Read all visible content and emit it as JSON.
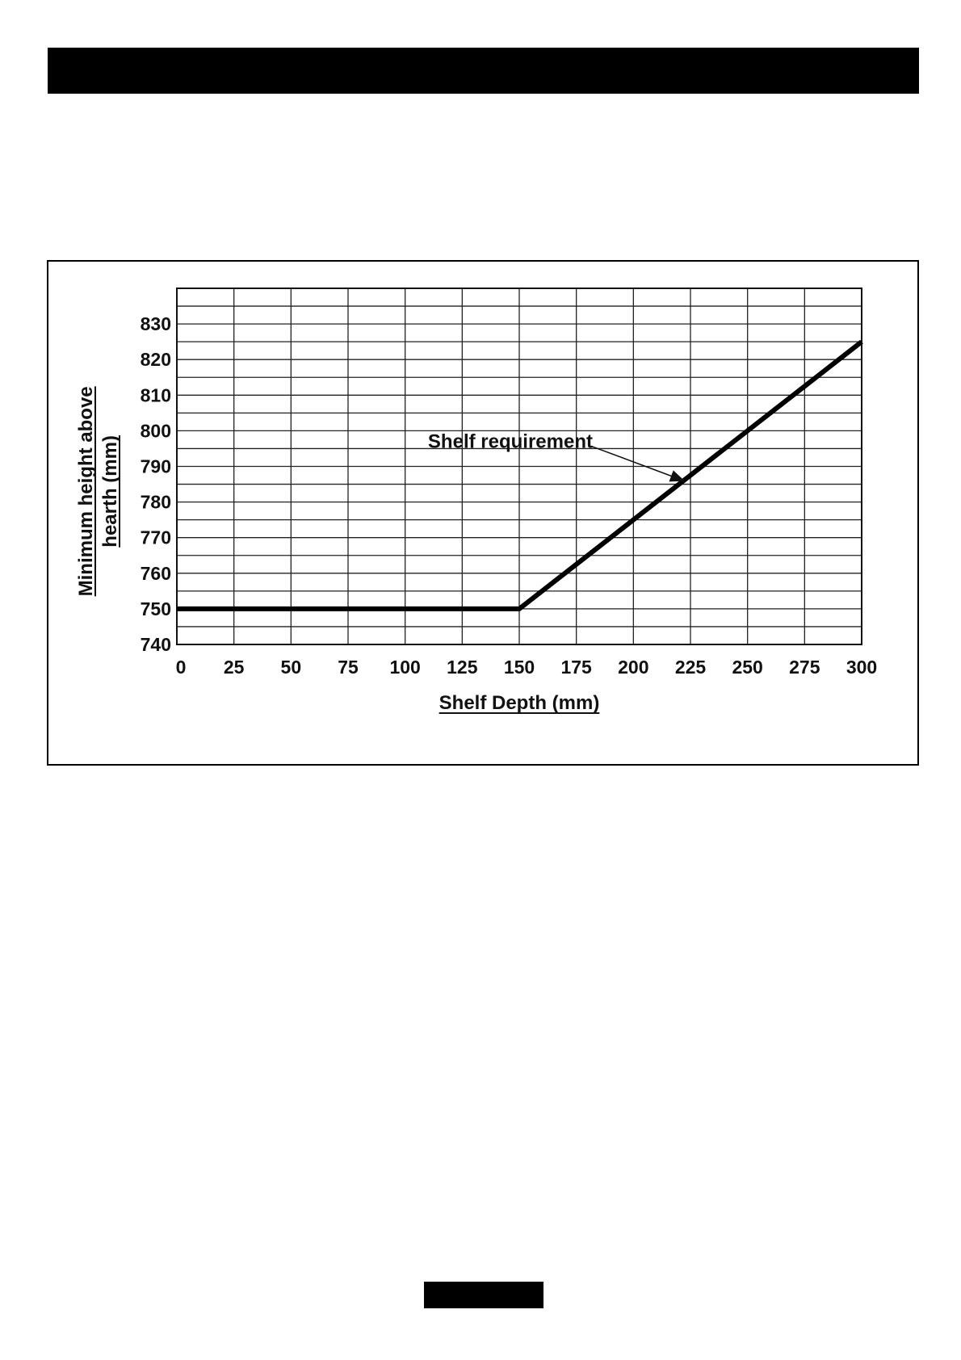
{
  "chart_data": {
    "type": "line",
    "title": "",
    "xlabel": "Shelf Depth (mm)",
    "ylabel_lines": [
      "Minimum height above",
      "hearth (mm)"
    ],
    "x_ticks": [
      0,
      25,
      50,
      75,
      100,
      125,
      150,
      175,
      200,
      225,
      250,
      275,
      300
    ],
    "y_ticks": [
      740,
      750,
      760,
      770,
      780,
      790,
      800,
      810,
      820,
      830
    ],
    "xlim": [
      0,
      300
    ],
    "ylim": [
      740,
      840
    ],
    "grid": true,
    "series": [
      {
        "name": "Shelf requirement",
        "x": [
          0,
          150,
          300
        ],
        "y": [
          750,
          750,
          825
        ]
      }
    ],
    "annotation": {
      "text": "Shelf requirement",
      "points_to": {
        "x": 222,
        "y": 786
      }
    }
  }
}
